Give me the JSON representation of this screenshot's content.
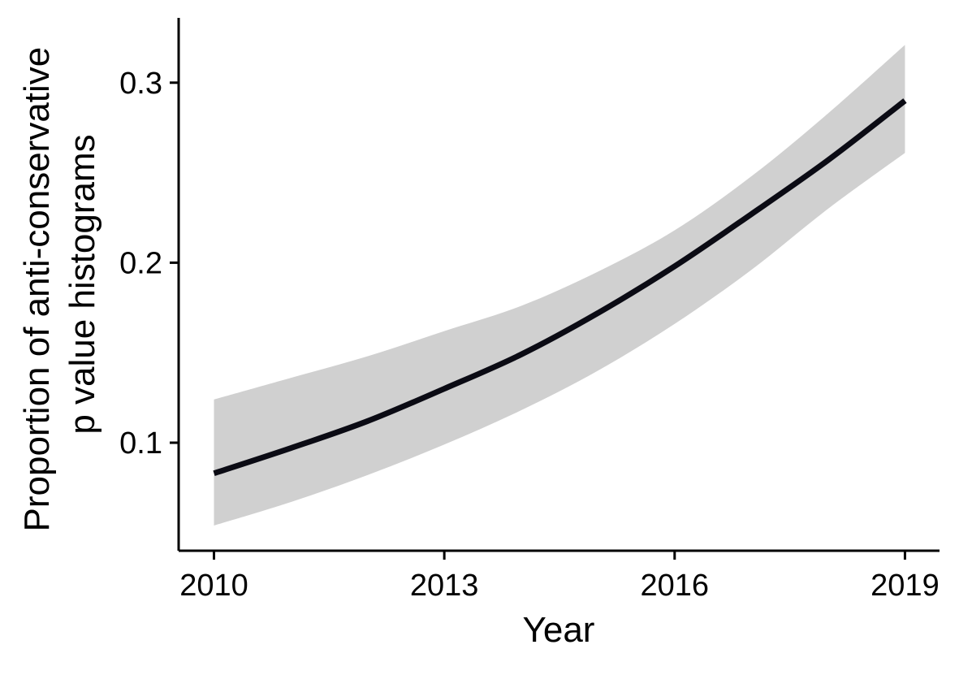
{
  "chart_data": {
    "type": "line",
    "xlabel": "Year",
    "ylabel_lines": [
      "Proportion of anti-conservative",
      "p value histograms"
    ],
    "xlim": [
      2009.54,
      2019.45
    ],
    "ylim": [
      0.04,
      0.336
    ],
    "xticks": [
      2010,
      2013,
      2016,
      2019
    ],
    "yticks": [
      0.1,
      0.2,
      0.3
    ],
    "ytick_labels": [
      "0.1",
      "0.2",
      "0.3"
    ],
    "grid": false,
    "legend": "none",
    "colors": {
      "line": "#0b0b14",
      "ribbon": "#d0d0d0",
      "axis": "#000000"
    },
    "series": [
      {
        "x": [
          2010,
          2011,
          2012,
          2013,
          2014,
          2015,
          2016,
          2017,
          2018,
          2019
        ],
        "y": [
          0.083,
          0.097,
          0.112,
          0.13,
          0.149,
          0.172,
          0.198,
          0.227,
          0.257,
          0.29
        ],
        "ymin": [
          0.054,
          0.067,
          0.082,
          0.099,
          0.118,
          0.14,
          0.166,
          0.196,
          0.23,
          0.261
        ],
        "ymax": [
          0.124,
          0.136,
          0.148,
          0.162,
          0.176,
          0.195,
          0.218,
          0.248,
          0.283,
          0.321
        ]
      }
    ]
  }
}
